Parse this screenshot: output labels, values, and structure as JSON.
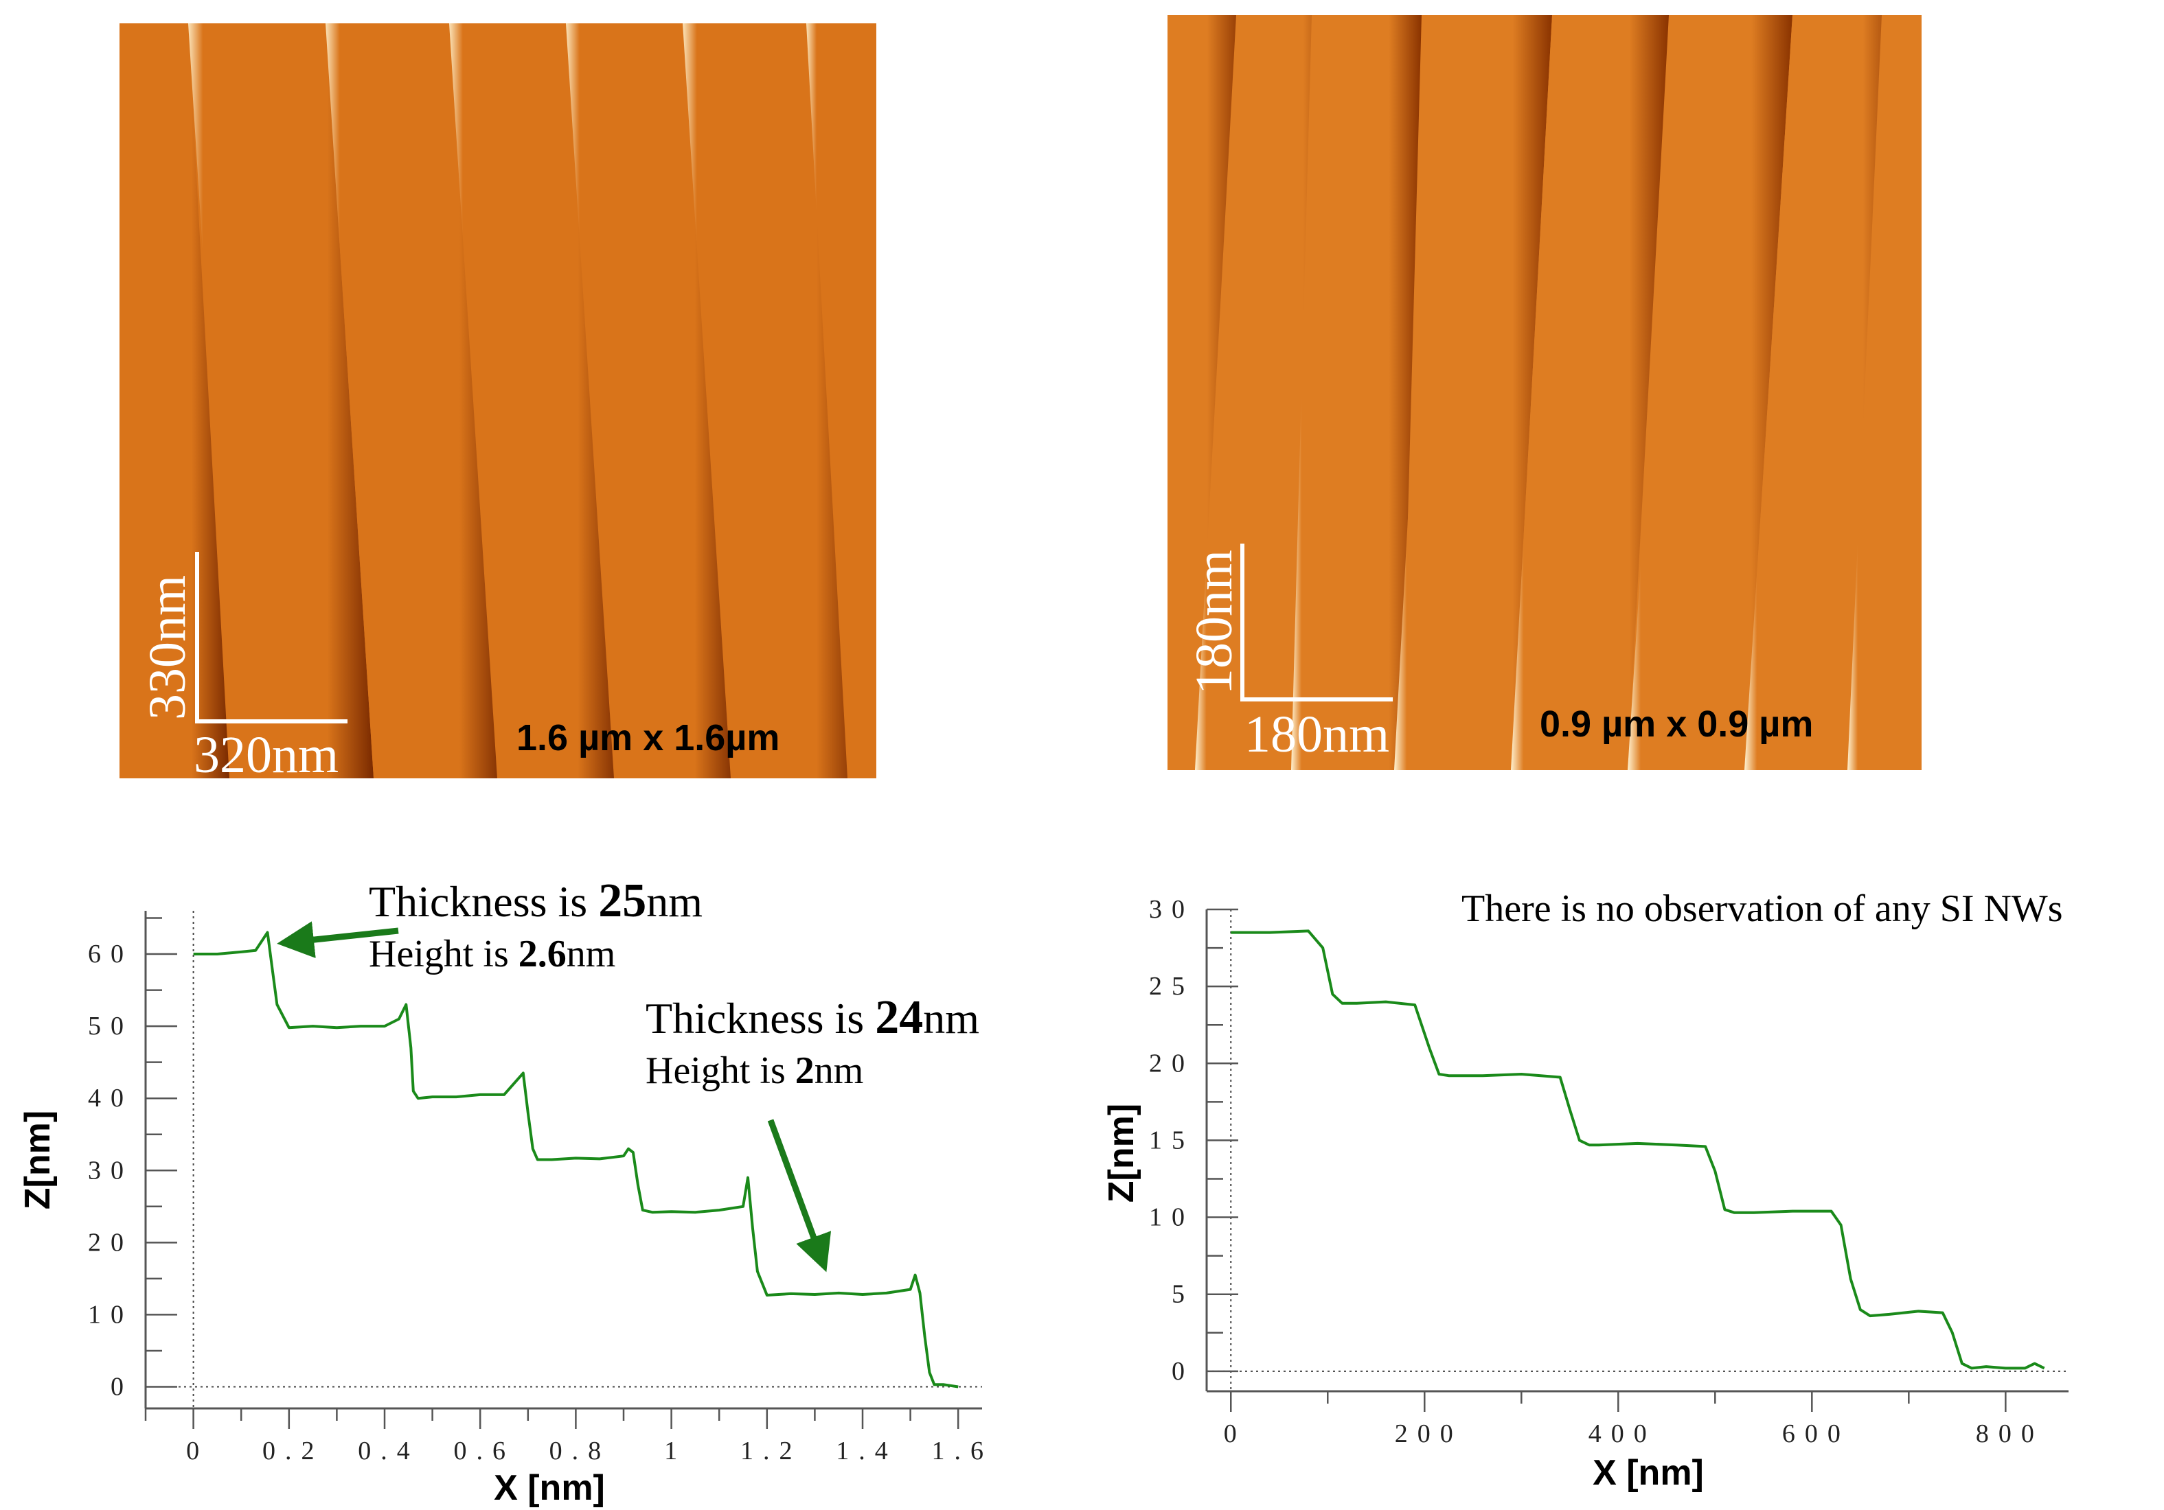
{
  "images": [
    {
      "size_label": "1.6 µm x 1.6µm",
      "scalebar": {
        "vertical": "330nm",
        "horizontal": "320nm"
      },
      "colors": {
        "dark": "#7a2a00",
        "mid": "#d9741a",
        "light": "#fbe3b8"
      }
    },
    {
      "size_label": "0.9 µm x 0.9 µm",
      "scalebar": {
        "vertical": "180nm",
        "horizontal": "180nm"
      },
      "colors": {
        "dark": "#8a3300",
        "mid": "#de7d22",
        "light": "#fff1cf"
      }
    }
  ],
  "annotations": {
    "left": [
      {
        "prefix": "Thickness is ",
        "value": "25",
        "unit": "nm"
      },
      {
        "prefix": "Height is ",
        "value": "2.6",
        "unit": "nm"
      },
      {
        "prefix": "Thickness is ",
        "value": "24",
        "unit": "nm"
      },
      {
        "prefix": "Height is ",
        "value": "2",
        "unit": "nm"
      }
    ],
    "right": "There is no observation of any SI NWs"
  },
  "line_color": "#1a8a1a",
  "arrow_color": "#1a7a1a",
  "chart_data": [
    {
      "type": "line",
      "xlabel": "X [nm]",
      "ylabel": "Z[nm]",
      "xlim": [
        -0.1,
        1.65
      ],
      "ylim": [
        -3,
        66
      ],
      "xticks": [
        0,
        0.2,
        0.4,
        0.6,
        0.8,
        1,
        1.2,
        1.4,
        1.6
      ],
      "xtick_labels": [
        "0",
        "0.2",
        "0.4",
        "0.6",
        "0.8",
        "1",
        "1.2",
        "1.4",
        "1.6"
      ],
      "yticks": [
        0,
        10,
        20,
        30,
        40,
        50,
        60
      ],
      "ytick_labels": [
        "0",
        "10",
        "20",
        "30",
        "40",
        "50",
        "60"
      ],
      "series": [
        {
          "x": [
            0,
            0.05,
            0.1,
            0.13,
            0.155,
            0.165,
            0.175,
            0.2,
            0.25,
            0.3,
            0.35,
            0.4,
            0.43,
            0.445,
            0.455,
            0.46,
            0.47,
            0.5,
            0.55,
            0.6,
            0.65,
            0.67,
            0.69,
            0.7,
            0.71,
            0.72,
            0.75,
            0.8,
            0.85,
            0.9,
            0.91,
            0.92,
            0.93,
            0.94,
            0.96,
            1.0,
            1.05,
            1.1,
            1.15,
            1.16,
            1.17,
            1.18,
            1.2,
            1.25,
            1.3,
            1.35,
            1.4,
            1.45,
            1.5,
            1.51,
            1.52,
            1.53,
            1.54,
            1.55,
            1.57,
            1.6
          ],
          "y": [
            60,
            60,
            60.3,
            60.5,
            63,
            58,
            53,
            49.8,
            50,
            49.8,
            50,
            50,
            51,
            53,
            47,
            41,
            40,
            40.2,
            40.2,
            40.5,
            40.5,
            42,
            43.5,
            38,
            33,
            31.5,
            31.5,
            31.7,
            31.6,
            32,
            33,
            32.5,
            28,
            24.5,
            24.2,
            24.3,
            24.2,
            24.5,
            25,
            29,
            22,
            16,
            12.7,
            12.9,
            12.8,
            13,
            12.8,
            13,
            13.5,
            15.5,
            13,
            7,
            2,
            0.3,
            0.3,
            0
          ]
        }
      ]
    },
    {
      "type": "line",
      "xlabel": "X [nm]",
      "ylabel": "Z[nm]",
      "xlim": [
        -25,
        865
      ],
      "ylim": [
        -1.3,
        30
      ],
      "xticks": [
        0,
        200,
        400,
        600,
        800
      ],
      "xtick_labels": [
        "0",
        "200",
        "400",
        "600",
        "800"
      ],
      "yticks": [
        0,
        5,
        10,
        15,
        20,
        25,
        30
      ],
      "ytick_labels": [
        "0",
        "5",
        "10",
        "15",
        "20",
        "25",
        "30"
      ],
      "series": [
        {
          "x": [
            0,
            40,
            80,
            95,
            105,
            115,
            130,
            160,
            190,
            205,
            215,
            225,
            260,
            300,
            340,
            350,
            360,
            370,
            380,
            420,
            460,
            490,
            500,
            510,
            520,
            540,
            580,
            620,
            630,
            640,
            650,
            660,
            680,
            710,
            735,
            745,
            755,
            765,
            780,
            800,
            820,
            830,
            840
          ],
          "y": [
            28.5,
            28.5,
            28.6,
            27.5,
            24.5,
            23.9,
            23.9,
            24,
            23.8,
            21,
            19.3,
            19.2,
            19.2,
            19.3,
            19.1,
            17,
            15,
            14.7,
            14.7,
            14.8,
            14.7,
            14.6,
            13,
            10.5,
            10.3,
            10.3,
            10.4,
            10.4,
            9.5,
            6,
            4,
            3.6,
            3.7,
            3.9,
            3.8,
            2.5,
            0.5,
            0.2,
            0.3,
            0.2,
            0.2,
            0.5,
            0.2
          ]
        }
      ]
    }
  ]
}
